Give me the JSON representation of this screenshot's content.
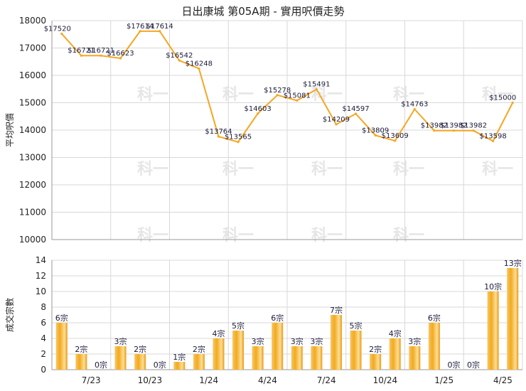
{
  "chart_data": [
    {
      "type": "line",
      "title": "日出康城 第05A期 - 實用呎價走勢",
      "ylabel": "平均呎價",
      "ylim": [
        10000,
        18000
      ],
      "yticks": [
        10000,
        11000,
        12000,
        13000,
        14000,
        15000,
        16000,
        17000,
        18000
      ],
      "grid": true,
      "color": "#f5a623",
      "series": [
        {
          "values": [
            17520,
            16721,
            16721,
            16623,
            17614,
            17614,
            16542,
            16248,
            13764,
            13565,
            14603,
            15278,
            15081,
            15491,
            14209,
            14597,
            13809,
            13609,
            14763,
            13982,
            13982,
            13982,
            13598,
            15000
          ],
          "labels": [
            "$17520",
            "$16721",
            "$16721",
            "$16623",
            "$17614",
            "$17614",
            "$16542",
            "$16248",
            "$13764",
            "$13565",
            "$14603",
            "$15278",
            "$15081",
            "$15491",
            "$14209",
            "$14597",
            "$13809",
            "$13609",
            "$14763",
            "$13982",
            "$13982",
            "$13982",
            "$13598",
            "$15000"
          ]
        }
      ]
    },
    {
      "type": "bar",
      "ylabel": "成交宗數",
      "ylim": [
        0,
        14
      ],
      "yticks": [
        0,
        2,
        4,
        6,
        8,
        10,
        12,
        14
      ],
      "grid": true,
      "color": "#f0ad1e",
      "categories": [
        "7/23",
        "10/23",
        "1/24",
        "4/24",
        "7/24",
        "10/24",
        "1/25",
        "4/25"
      ],
      "category_positions": [
        2,
        5,
        8,
        11,
        14,
        17,
        20,
        23
      ],
      "values": [
        6,
        2,
        0,
        3,
        2,
        0,
        1,
        2,
        4,
        5,
        3,
        6,
        3,
        3,
        7,
        5,
        2,
        4,
        3,
        6,
        0,
        0,
        10,
        13
      ],
      "labels": [
        "6宗",
        "2宗",
        "0宗",
        "3宗",
        "2宗",
        "0宗",
        "1宗",
        "2宗",
        "4宗",
        "5宗",
        "3宗",
        "6宗",
        "3宗",
        "3宗",
        "7宗",
        "5宗",
        "2宗",
        "4宗",
        "3宗",
        "6宗",
        "0宗",
        "0宗",
        "10宗",
        "13宗"
      ]
    }
  ],
  "watermark": "科一",
  "colors": {
    "line": "#f5a623",
    "bar": "#f0ad1e",
    "grid": "#d8d8d8",
    "axis": "#999999"
  }
}
